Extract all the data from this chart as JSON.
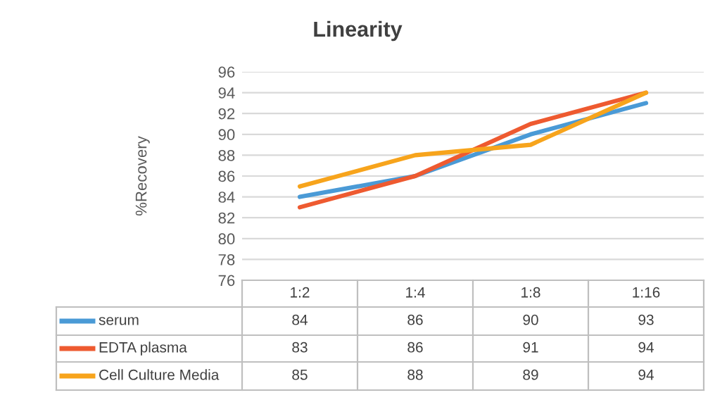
{
  "chart_data": {
    "type": "line",
    "title": "Linearity",
    "ylabel": "%Recovery",
    "categories": [
      "1:2",
      "1:4",
      "1:8",
      "1:16"
    ],
    "series": [
      {
        "name": "serum",
        "color": "#4a9ad6",
        "values": [
          84,
          86,
          90,
          93
        ]
      },
      {
        "name": "EDTA plasma",
        "color": "#ee5a30",
        "values": [
          83,
          86,
          91,
          94
        ]
      },
      {
        "name": "Cell Culture Media",
        "color": "#f7a41c",
        "values": [
          85,
          88,
          89,
          94
        ]
      }
    ],
    "ylim": [
      76,
      96
    ],
    "yticks": [
      76,
      78,
      80,
      82,
      84,
      86,
      88,
      90,
      92,
      94,
      96
    ],
    "grid": "y",
    "data_labels": true,
    "legend": "bottom",
    "marker": "none",
    "line_style": "solid"
  }
}
